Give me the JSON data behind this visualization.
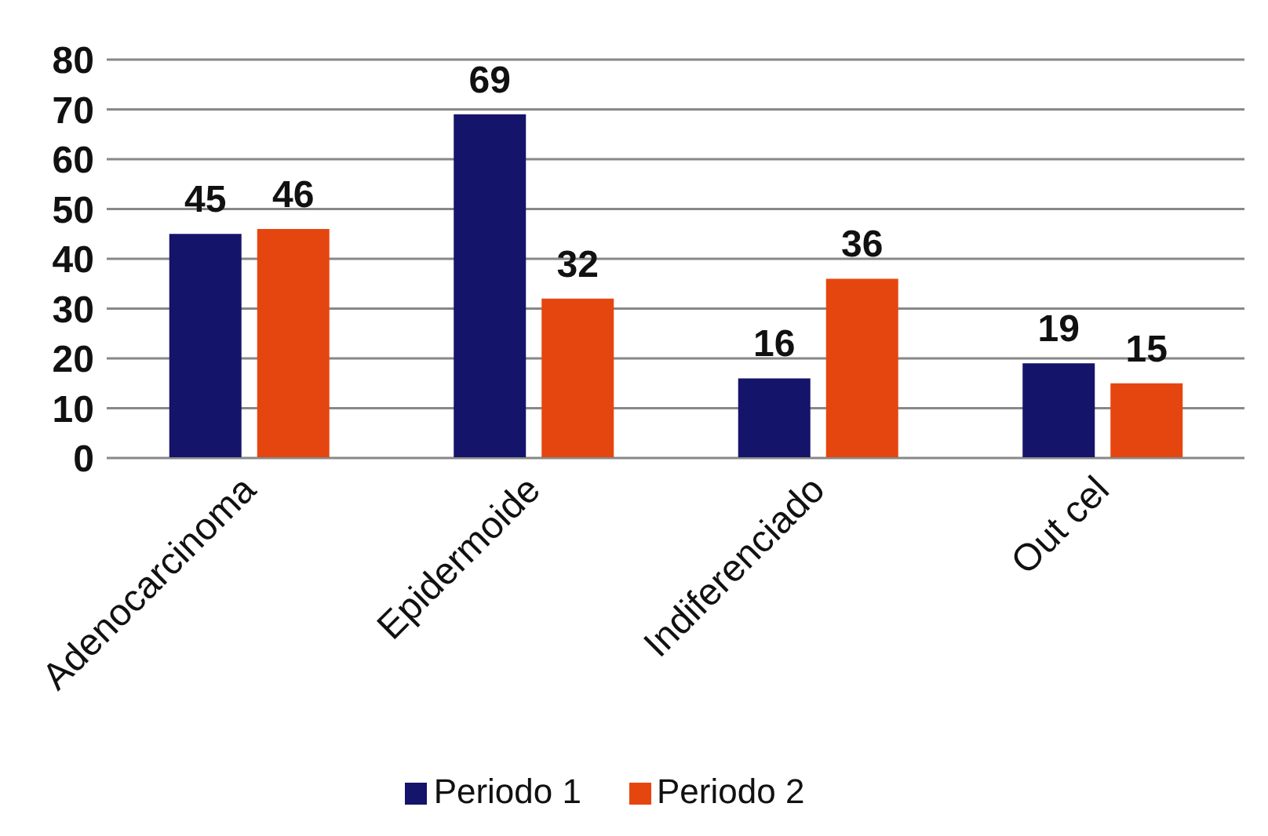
{
  "chart_data": {
    "type": "bar",
    "categories": [
      "Adenocarcinoma",
      "Epidermoide",
      "Indiferenciado",
      "Out cel"
    ],
    "series": [
      {
        "name": "Periodo 1",
        "color": "#14146b",
        "values": [
          45,
          69,
          16,
          19
        ]
      },
      {
        "name": "Periodo 2",
        "color": "#e5460f",
        "values": [
          46,
          32,
          36,
          15
        ]
      }
    ],
    "ylim": [
      0,
      80
    ],
    "yticks": [
      0,
      10,
      20,
      30,
      40,
      50,
      60,
      70,
      80
    ],
    "grid": "y",
    "legend": "bottom",
    "data_labels": true
  }
}
